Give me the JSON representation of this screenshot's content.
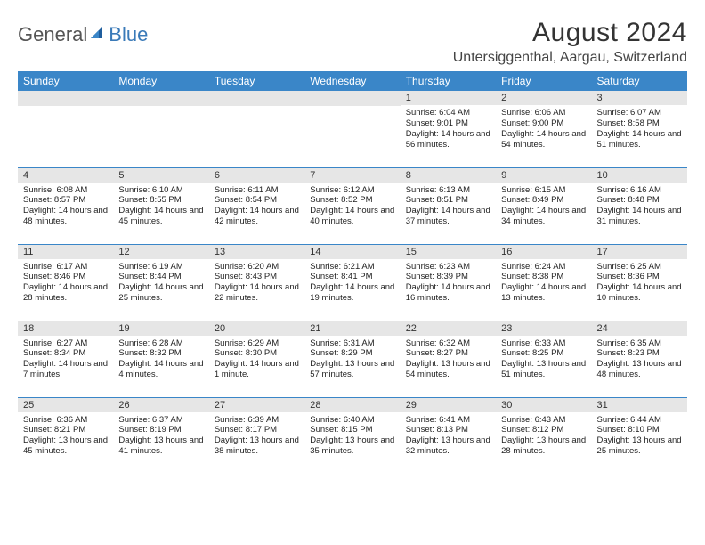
{
  "brand": {
    "part1": "General",
    "part2": "Blue"
  },
  "title": "August 2024",
  "location": "Untersiggenthal, Aargau, Switzerland",
  "colors": {
    "header_bg": "#3a86c8",
    "header_text": "#ffffff",
    "daybar_bg": "#e6e6e6",
    "rule": "#3a86c8",
    "brand_gray": "#555555",
    "brand_blue": "#3a7ab8"
  },
  "weekdays": [
    "Sunday",
    "Monday",
    "Tuesday",
    "Wednesday",
    "Thursday",
    "Friday",
    "Saturday"
  ],
  "weeks": [
    [
      null,
      null,
      null,
      null,
      {
        "n": "1",
        "sr": "6:04 AM",
        "ss": "9:01 PM",
        "dl": "14 hours and 56 minutes."
      },
      {
        "n": "2",
        "sr": "6:06 AM",
        "ss": "9:00 PM",
        "dl": "14 hours and 54 minutes."
      },
      {
        "n": "3",
        "sr": "6:07 AM",
        "ss": "8:58 PM",
        "dl": "14 hours and 51 minutes."
      }
    ],
    [
      {
        "n": "4",
        "sr": "6:08 AM",
        "ss": "8:57 PM",
        "dl": "14 hours and 48 minutes."
      },
      {
        "n": "5",
        "sr": "6:10 AM",
        "ss": "8:55 PM",
        "dl": "14 hours and 45 minutes."
      },
      {
        "n": "6",
        "sr": "6:11 AM",
        "ss": "8:54 PM",
        "dl": "14 hours and 42 minutes."
      },
      {
        "n": "7",
        "sr": "6:12 AM",
        "ss": "8:52 PM",
        "dl": "14 hours and 40 minutes."
      },
      {
        "n": "8",
        "sr": "6:13 AM",
        "ss": "8:51 PM",
        "dl": "14 hours and 37 minutes."
      },
      {
        "n": "9",
        "sr": "6:15 AM",
        "ss": "8:49 PM",
        "dl": "14 hours and 34 minutes."
      },
      {
        "n": "10",
        "sr": "6:16 AM",
        "ss": "8:48 PM",
        "dl": "14 hours and 31 minutes."
      }
    ],
    [
      {
        "n": "11",
        "sr": "6:17 AM",
        "ss": "8:46 PM",
        "dl": "14 hours and 28 minutes."
      },
      {
        "n": "12",
        "sr": "6:19 AM",
        "ss": "8:44 PM",
        "dl": "14 hours and 25 minutes."
      },
      {
        "n": "13",
        "sr": "6:20 AM",
        "ss": "8:43 PM",
        "dl": "14 hours and 22 minutes."
      },
      {
        "n": "14",
        "sr": "6:21 AM",
        "ss": "8:41 PM",
        "dl": "14 hours and 19 minutes."
      },
      {
        "n": "15",
        "sr": "6:23 AM",
        "ss": "8:39 PM",
        "dl": "14 hours and 16 minutes."
      },
      {
        "n": "16",
        "sr": "6:24 AM",
        "ss": "8:38 PM",
        "dl": "14 hours and 13 minutes."
      },
      {
        "n": "17",
        "sr": "6:25 AM",
        "ss": "8:36 PM",
        "dl": "14 hours and 10 minutes."
      }
    ],
    [
      {
        "n": "18",
        "sr": "6:27 AM",
        "ss": "8:34 PM",
        "dl": "14 hours and 7 minutes."
      },
      {
        "n": "19",
        "sr": "6:28 AM",
        "ss": "8:32 PM",
        "dl": "14 hours and 4 minutes."
      },
      {
        "n": "20",
        "sr": "6:29 AM",
        "ss": "8:30 PM",
        "dl": "14 hours and 1 minute."
      },
      {
        "n": "21",
        "sr": "6:31 AM",
        "ss": "8:29 PM",
        "dl": "13 hours and 57 minutes."
      },
      {
        "n": "22",
        "sr": "6:32 AM",
        "ss": "8:27 PM",
        "dl": "13 hours and 54 minutes."
      },
      {
        "n": "23",
        "sr": "6:33 AM",
        "ss": "8:25 PM",
        "dl": "13 hours and 51 minutes."
      },
      {
        "n": "24",
        "sr": "6:35 AM",
        "ss": "8:23 PM",
        "dl": "13 hours and 48 minutes."
      }
    ],
    [
      {
        "n": "25",
        "sr": "6:36 AM",
        "ss": "8:21 PM",
        "dl": "13 hours and 45 minutes."
      },
      {
        "n": "26",
        "sr": "6:37 AM",
        "ss": "8:19 PM",
        "dl": "13 hours and 41 minutes."
      },
      {
        "n": "27",
        "sr": "6:39 AM",
        "ss": "8:17 PM",
        "dl": "13 hours and 38 minutes."
      },
      {
        "n": "28",
        "sr": "6:40 AM",
        "ss": "8:15 PM",
        "dl": "13 hours and 35 minutes."
      },
      {
        "n": "29",
        "sr": "6:41 AM",
        "ss": "8:13 PM",
        "dl": "13 hours and 32 minutes."
      },
      {
        "n": "30",
        "sr": "6:43 AM",
        "ss": "8:12 PM",
        "dl": "13 hours and 28 minutes."
      },
      {
        "n": "31",
        "sr": "6:44 AM",
        "ss": "8:10 PM",
        "dl": "13 hours and 25 minutes."
      }
    ]
  ]
}
